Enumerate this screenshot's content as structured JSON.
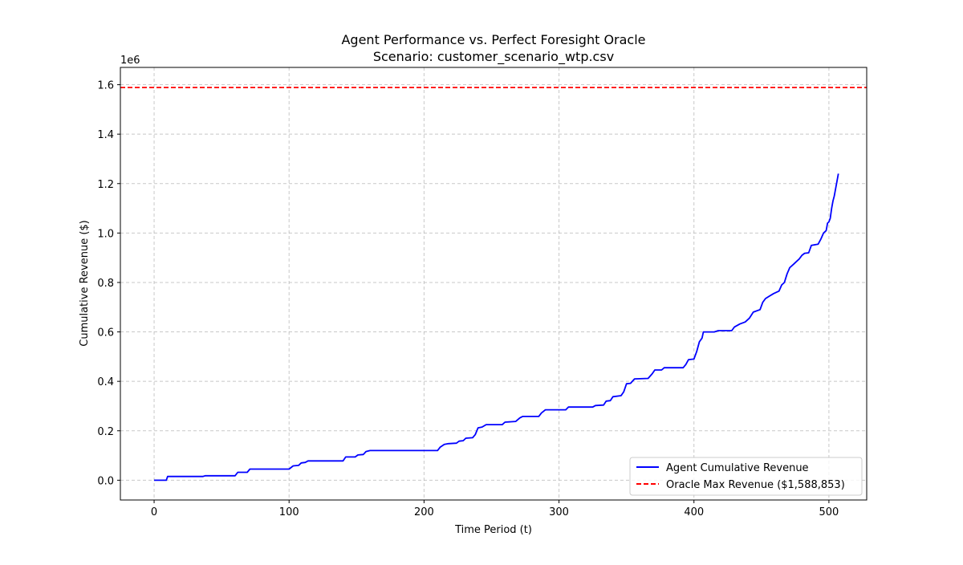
{
  "chart_data": {
    "type": "line",
    "title": "Agent Performance vs. Perfect Foresight Oracle",
    "subtitle": "Scenario: customer_scenario_wtp.csv",
    "xlabel": "Time Period (t)",
    "ylabel": "Cumulative Revenue ($)",
    "y_multiplier_label": "1e6",
    "xlim": [
      -25,
      528
    ],
    "ylim": [
      -80000,
      1670000
    ],
    "x_ticks": [
      0,
      100,
      200,
      300,
      400,
      500
    ],
    "y_ticks": [
      0,
      200000,
      400000,
      600000,
      800000,
      1000000,
      1200000,
      1400000,
      1600000
    ],
    "x_tick_labels": [
      "0",
      "100",
      "200",
      "300",
      "400",
      "500"
    ],
    "y_tick_labels": [
      "0.0",
      "0.2",
      "0.4",
      "0.6",
      "0.8",
      "1.0",
      "1.2",
      "1.4",
      "1.6"
    ],
    "grid": true,
    "legend_position": "lower-right",
    "series": [
      {
        "name": "Agent Cumulative Revenue",
        "color": "#0000ff",
        "style": "solid",
        "points": [
          [
            0,
            0
          ],
          [
            9,
            0
          ],
          [
            10,
            15000
          ],
          [
            36,
            15000
          ],
          [
            38,
            18000
          ],
          [
            60,
            18000
          ],
          [
            62,
            32000
          ],
          [
            69,
            32000
          ],
          [
            71,
            45000
          ],
          [
            100,
            45000
          ],
          [
            103,
            58000
          ],
          [
            107,
            60000
          ],
          [
            109,
            70000
          ],
          [
            112,
            72000
          ],
          [
            114,
            78000
          ],
          [
            140,
            78000
          ],
          [
            142,
            94000
          ],
          [
            149,
            94000
          ],
          [
            151,
            102000
          ],
          [
            155,
            104000
          ],
          [
            157,
            116000
          ],
          [
            160,
            120000
          ],
          [
            210,
            120000
          ],
          [
            212,
            134000
          ],
          [
            215,
            145000
          ],
          [
            218,
            148000
          ],
          [
            224,
            150000
          ],
          [
            226,
            158000
          ],
          [
            229,
            160000
          ],
          [
            231,
            170000
          ],
          [
            236,
            172000
          ],
          [
            238,
            185000
          ],
          [
            240,
            212000
          ],
          [
            243,
            215000
          ],
          [
            246,
            225000
          ],
          [
            258,
            225000
          ],
          [
            260,
            235000
          ],
          [
            268,
            238000
          ],
          [
            271,
            252000
          ],
          [
            273,
            258000
          ],
          [
            285,
            258000
          ],
          [
            287,
            272000
          ],
          [
            290,
            285000
          ],
          [
            305,
            285000
          ],
          [
            307,
            296000
          ],
          [
            325,
            296000
          ],
          [
            327,
            302000
          ],
          [
            333,
            304000
          ],
          [
            335,
            320000
          ],
          [
            338,
            322000
          ],
          [
            340,
            338000
          ],
          [
            346,
            342000
          ],
          [
            348,
            358000
          ],
          [
            350,
            390000
          ],
          [
            353,
            392000
          ],
          [
            356,
            410000
          ],
          [
            366,
            412000
          ],
          [
            369,
            430000
          ],
          [
            371,
            446000
          ],
          [
            376,
            446000
          ],
          [
            378,
            455000
          ],
          [
            392,
            455000
          ],
          [
            394,
            468000
          ],
          [
            396,
            488000
          ],
          [
            400,
            490000
          ],
          [
            402,
            520000
          ],
          [
            404,
            560000
          ],
          [
            406,
            575000
          ],
          [
            407,
            600000
          ],
          [
            415,
            600000
          ],
          [
            418,
            605000
          ],
          [
            428,
            605000
          ],
          [
            430,
            620000
          ],
          [
            434,
            632000
          ],
          [
            438,
            640000
          ],
          [
            441,
            655000
          ],
          [
            444,
            680000
          ],
          [
            449,
            690000
          ],
          [
            451,
            720000
          ],
          [
            453,
            735000
          ],
          [
            456,
            745000
          ],
          [
            459,
            755000
          ],
          [
            463,
            765000
          ],
          [
            465,
            790000
          ],
          [
            467,
            800000
          ],
          [
            469,
            835000
          ],
          [
            471,
            860000
          ],
          [
            474,
            875000
          ],
          [
            476,
            885000
          ],
          [
            478,
            895000
          ],
          [
            480,
            910000
          ],
          [
            482,
            918000
          ],
          [
            485,
            920000
          ],
          [
            487,
            950000
          ],
          [
            492,
            955000
          ],
          [
            494,
            975000
          ],
          [
            496,
            1000000
          ],
          [
            498,
            1010000
          ],
          [
            499,
            1040000
          ],
          [
            500,
            1045000
          ],
          [
            501,
            1060000
          ],
          [
            502,
            1100000
          ],
          [
            503,
            1130000
          ],
          [
            504,
            1150000
          ],
          [
            505,
            1180000
          ],
          [
            506,
            1210000
          ],
          [
            507,
            1240000
          ]
        ]
      },
      {
        "name": "Oracle Max Revenue ($1,588,853)",
        "color": "#ff0000",
        "style": "dashed",
        "hline": 1588853
      }
    ]
  }
}
